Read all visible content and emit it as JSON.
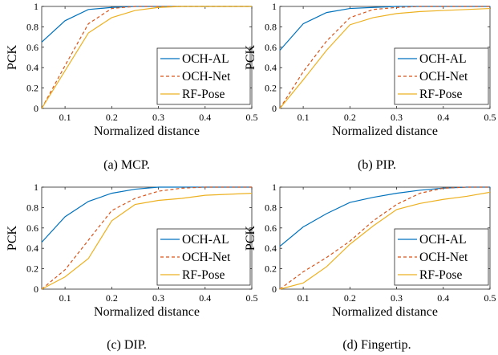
{
  "chart_data": [
    {
      "type": "line",
      "caption": "(a) MCP.",
      "xlabel": "Normalized distance",
      "ylabel": "PCK",
      "xlim": [
        0.05,
        0.5
      ],
      "ylim": [
        0,
        1
      ],
      "xticks": [
        "0.1",
        "0.2",
        "0.3",
        "0.4",
        "0.5"
      ],
      "yticks": [
        "0",
        "0.2",
        "0.4",
        "0.6",
        "0.8",
        "1"
      ],
      "legend_position": "bottom-right",
      "x": [
        0.05,
        0.1,
        0.15,
        0.2,
        0.25,
        0.3,
        0.35,
        0.4,
        0.45,
        0.5
      ],
      "series": [
        {
          "name": "OCH-AL",
          "color": "#0072BD",
          "dash": "solid",
          "values": [
            0.65,
            0.86,
            0.97,
            0.99,
            1.0,
            1.0,
            1.0,
            1.0,
            1.0,
            1.0
          ]
        },
        {
          "name": "OCH-Net",
          "color": "#D95319",
          "dash": "dashed",
          "values": [
            0.0,
            0.42,
            0.83,
            0.98,
            1.0,
            1.0,
            1.0,
            1.0,
            1.0,
            1.0
          ]
        },
        {
          "name": "RF-Pose",
          "color": "#EDB120",
          "dash": "solid",
          "values": [
            0.0,
            0.37,
            0.74,
            0.89,
            0.96,
            0.99,
            1.0,
            1.0,
            1.0,
            1.0
          ]
        }
      ]
    },
    {
      "type": "line",
      "caption": "(b) PIP.",
      "xlabel": "Normalized distance",
      "ylabel": "PCK",
      "xlim": [
        0.05,
        0.5
      ],
      "ylim": [
        0,
        1
      ],
      "xticks": [
        "0.1",
        "0.2",
        "0.3",
        "0.4",
        "0.5"
      ],
      "yticks": [
        "0",
        "0.2",
        "0.4",
        "0.6",
        "0.8",
        "1"
      ],
      "legend_position": "bottom-right",
      "x": [
        0.05,
        0.1,
        0.15,
        0.2,
        0.25,
        0.3,
        0.35,
        0.4,
        0.45,
        0.5
      ],
      "series": [
        {
          "name": "OCH-AL",
          "color": "#0072BD",
          "dash": "solid",
          "values": [
            0.57,
            0.83,
            0.94,
            0.98,
            0.99,
            1.0,
            1.0,
            1.0,
            1.0,
            1.0
          ]
        },
        {
          "name": "OCH-Net",
          "color": "#D95319",
          "dash": "dashed",
          "values": [
            0.0,
            0.36,
            0.66,
            0.89,
            0.97,
            0.99,
            1.0,
            1.0,
            1.0,
            1.0
          ]
        },
        {
          "name": "RF-Pose",
          "color": "#EDB120",
          "dash": "solid",
          "values": [
            0.0,
            0.28,
            0.57,
            0.82,
            0.89,
            0.93,
            0.95,
            0.96,
            0.97,
            0.98
          ]
        }
      ]
    },
    {
      "type": "line",
      "caption": "(c) DIP.",
      "xlabel": "Normalized distance",
      "ylabel": "PCK",
      "xlim": [
        0.05,
        0.5
      ],
      "ylim": [
        0,
        1
      ],
      "xticks": [
        "0.1",
        "0.2",
        "0.3",
        "0.4",
        "0.5"
      ],
      "yticks": [
        "0",
        "0.2",
        "0.4",
        "0.6",
        "0.8",
        "1"
      ],
      "legend_position": "bottom-right",
      "x": [
        0.05,
        0.1,
        0.15,
        0.2,
        0.25,
        0.3,
        0.35,
        0.4,
        0.45,
        0.5
      ],
      "series": [
        {
          "name": "OCH-AL",
          "color": "#0072BD",
          "dash": "solid",
          "values": [
            0.46,
            0.71,
            0.86,
            0.94,
            0.98,
            1.0,
            1.0,
            1.0,
            1.0,
            1.0
          ]
        },
        {
          "name": "OCH-Net",
          "color": "#D95319",
          "dash": "dashed",
          "values": [
            0.0,
            0.19,
            0.48,
            0.77,
            0.89,
            0.96,
            0.99,
            1.0,
            1.0,
            1.0
          ]
        },
        {
          "name": "RF-Pose",
          "color": "#EDB120",
          "dash": "solid",
          "values": [
            0.0,
            0.12,
            0.3,
            0.67,
            0.83,
            0.87,
            0.89,
            0.92,
            0.93,
            0.94
          ]
        }
      ]
    },
    {
      "type": "line",
      "caption": "(d) Fingertip.",
      "xlabel": "Normalized distance",
      "ylabel": "PCK",
      "xlim": [
        0.05,
        0.5
      ],
      "ylim": [
        0,
        1
      ],
      "xticks": [
        "0.1",
        "0.2",
        "0.3",
        "0.4",
        "0.5"
      ],
      "yticks": [
        "0",
        "0.2",
        "0.4",
        "0.6",
        "0.8",
        "1"
      ],
      "legend_position": "bottom-right",
      "x": [
        0.05,
        0.1,
        0.15,
        0.2,
        0.25,
        0.3,
        0.35,
        0.4,
        0.45,
        0.5
      ],
      "series": [
        {
          "name": "OCH-AL",
          "color": "#0072BD",
          "dash": "solid",
          "values": [
            0.42,
            0.61,
            0.74,
            0.85,
            0.9,
            0.94,
            0.97,
            0.99,
            1.0,
            1.0
          ]
        },
        {
          "name": "OCH-Net",
          "color": "#D95319",
          "dash": "dashed",
          "values": [
            0.0,
            0.17,
            0.31,
            0.47,
            0.67,
            0.83,
            0.94,
            0.99,
            1.0,
            1.0
          ]
        },
        {
          "name": "RF-Pose",
          "color": "#EDB120",
          "dash": "solid",
          "values": [
            0.0,
            0.06,
            0.22,
            0.44,
            0.62,
            0.78,
            0.84,
            0.88,
            0.91,
            0.95
          ]
        }
      ]
    }
  ]
}
